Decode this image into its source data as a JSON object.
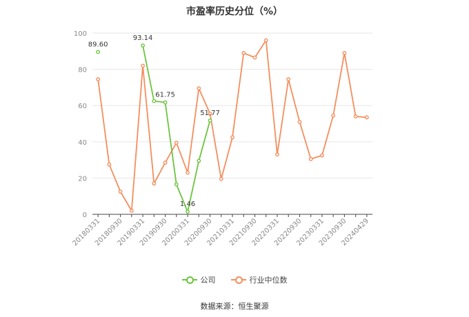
{
  "chart_data": {
    "type": "line",
    "title": "市盈率历史分位（%）",
    "categories": [
      "20180331",
      "20180630",
      "20180930",
      "20181231",
      "20190331",
      "20190630",
      "20190930",
      "20191231",
      "20200331",
      "20200630",
      "20200930",
      "20201231",
      "20210331",
      "20210630",
      "20210930",
      "20211231",
      "20220331",
      "20220630",
      "20220930",
      "20221231",
      "20230331",
      "20230630",
      "20230930",
      "20231231",
      "20240429"
    ],
    "tick_labels": [
      "20180331",
      "20180930",
      "20190331",
      "20190930",
      "20200331",
      "20200930",
      "20210331",
      "20210930",
      "20220331",
      "20220930",
      "20230331",
      "20230930",
      "20240429"
    ],
    "ylim": [
      0,
      100
    ],
    "yticks": [
      0,
      20,
      40,
      60,
      80,
      100
    ],
    "grid": true,
    "legend_position": "bottom",
    "series": [
      {
        "name": "公司",
        "color": "#6cc43e",
        "values": [
          89.6,
          null,
          null,
          null,
          93.14,
          62.5,
          61.75,
          16.5,
          1.46,
          29.5,
          51.77,
          null,
          null,
          null,
          null,
          null,
          null,
          null,
          null,
          null,
          null,
          null,
          null,
          null,
          null
        ],
        "labels": [
          {
            "index": 0,
            "text": "89.60"
          },
          {
            "index": 4,
            "text": "93.14"
          },
          {
            "index": 6,
            "text": "61.75"
          },
          {
            "index": 8,
            "text": "1.46"
          },
          {
            "index": 10,
            "text": "51.77"
          }
        ]
      },
      {
        "name": "行业中位数",
        "color": "#f58d5c",
        "values": [
          74.5,
          27.5,
          12.5,
          2.0,
          82.0,
          17.0,
          28.5,
          39.5,
          23.0,
          69.5,
          55.5,
          19.5,
          42.5,
          89.0,
          86.5,
          96.0,
          33.0,
          74.5,
          51.0,
          30.5,
          32.5,
          54.5,
          89.0,
          54.0,
          53.5
        ]
      }
    ]
  },
  "source_text": "数据来源：恒生聚源"
}
